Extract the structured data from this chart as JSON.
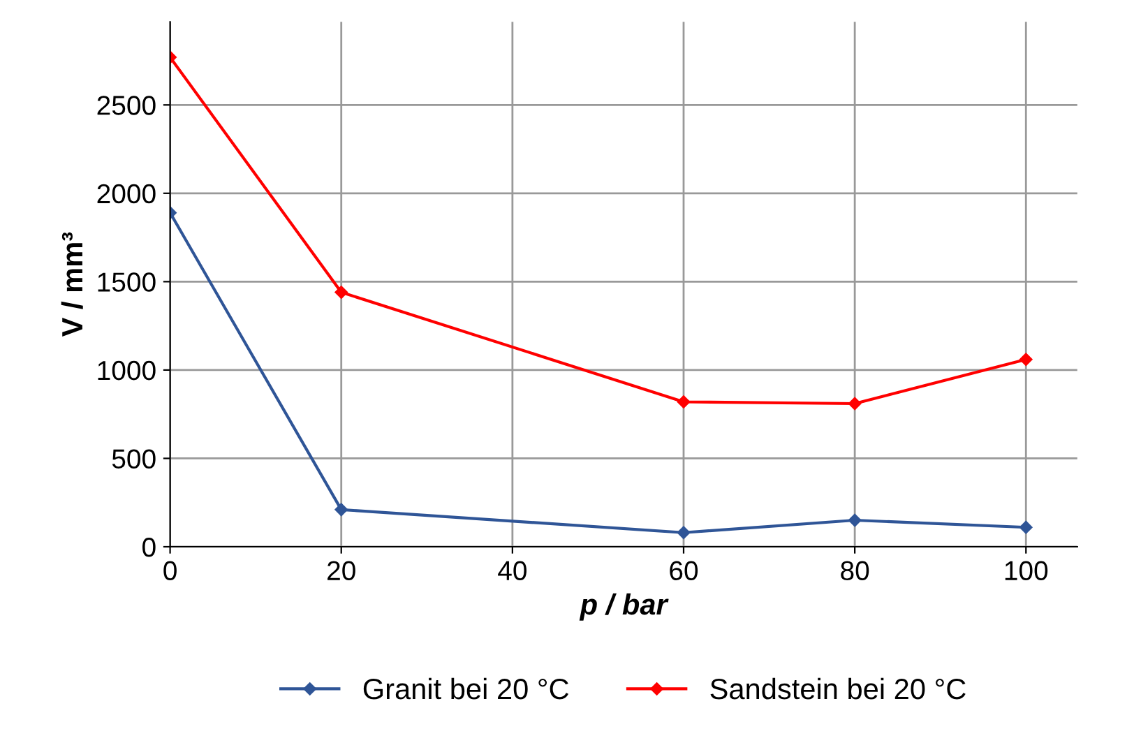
{
  "chart_data": {
    "type": "line",
    "xlabel": "p / bar",
    "ylabel": "V / mm³",
    "x": [
      0,
      20,
      60,
      80,
      100
    ],
    "series": [
      {
        "name": "Granit bei 20 °C",
        "color": "#2f5597",
        "values": [
          1890,
          210,
          80,
          150,
          110
        ]
      },
      {
        "name": "Sandstein bei 20 °C",
        "color": "#ff0000",
        "values": [
          2770,
          1440,
          820,
          810,
          1060
        ]
      }
    ],
    "xlim": [
      0,
      106
    ],
    "ylim": [
      0,
      2970
    ],
    "xticks": [
      0,
      20,
      40,
      60,
      80,
      100
    ],
    "yticks": [
      0,
      500,
      1000,
      1500,
      2000,
      2500
    ],
    "grid": true,
    "legend": "bottom",
    "marker": "diamond",
    "line_style": "solid"
  }
}
